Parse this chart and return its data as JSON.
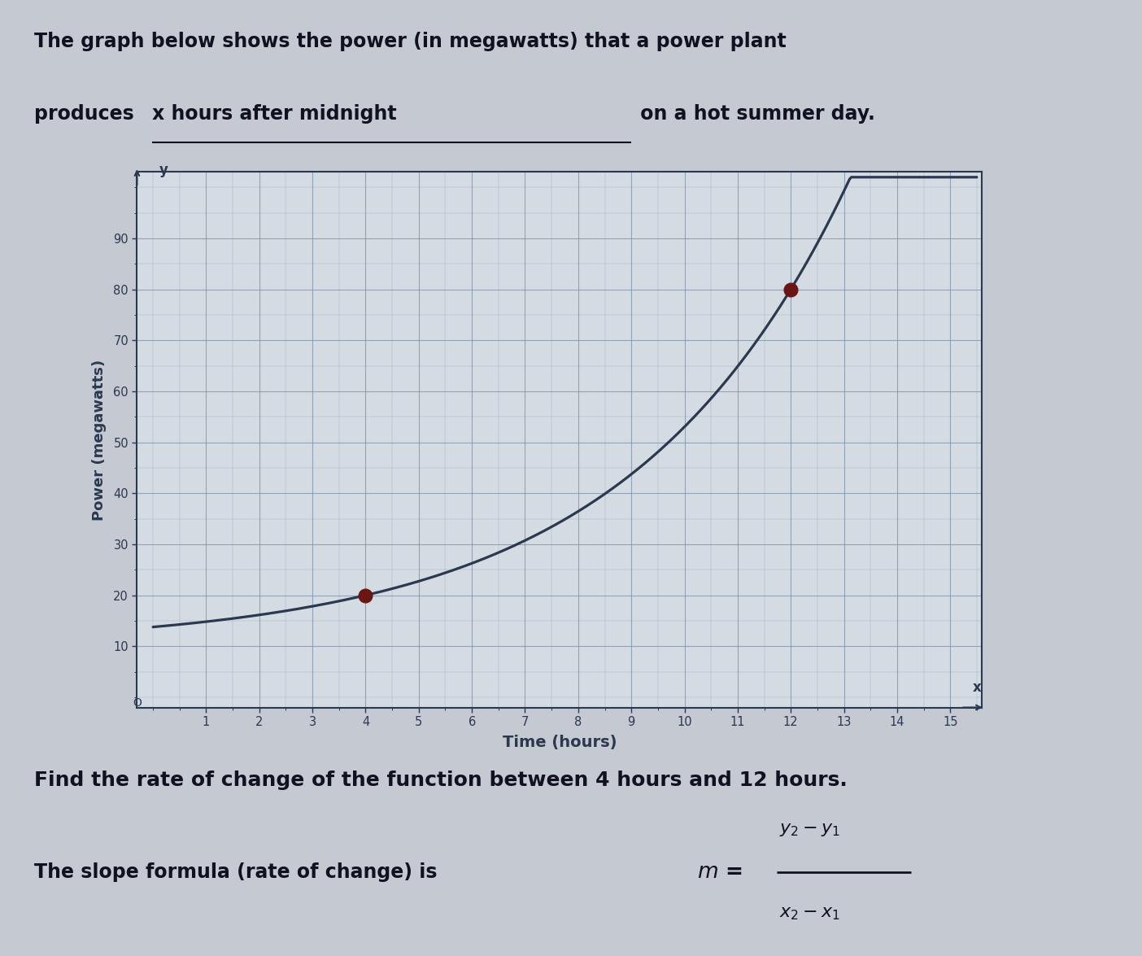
{
  "xlabel": "Time (hours)",
  "ylabel": "Power (megawatts)",
  "xlim": [
    0,
    15.6
  ],
  "ylim": [
    0,
    100
  ],
  "xticks": [
    1,
    2,
    3,
    4,
    5,
    6,
    7,
    8,
    9,
    10,
    11,
    12,
    13,
    14,
    15
  ],
  "yticks": [
    10,
    20,
    30,
    40,
    50,
    60,
    70,
    80,
    90
  ],
  "highlight_points": [
    [
      4,
      20
    ],
    [
      12,
      80
    ]
  ],
  "dot_color": "#6B1515",
  "curve_color": "#2A3850",
  "background_color": "#D5DBE3",
  "grid_color": "#7A8FA8",
  "axis_color": "#2A3850",
  "page_background": "#C5CAD2",
  "title1": "The graph below shows the power (in megawatts) that a power plant",
  "title2_pre": "produces ",
  "title2_underline": "x hours after midnight",
  "title2_post": " on a hot summer day.",
  "footer1": "Find the rate of change of the function between 4 hours and 12 hours.",
  "footer2_pre": "The slope formula (rate of change) is  "
}
